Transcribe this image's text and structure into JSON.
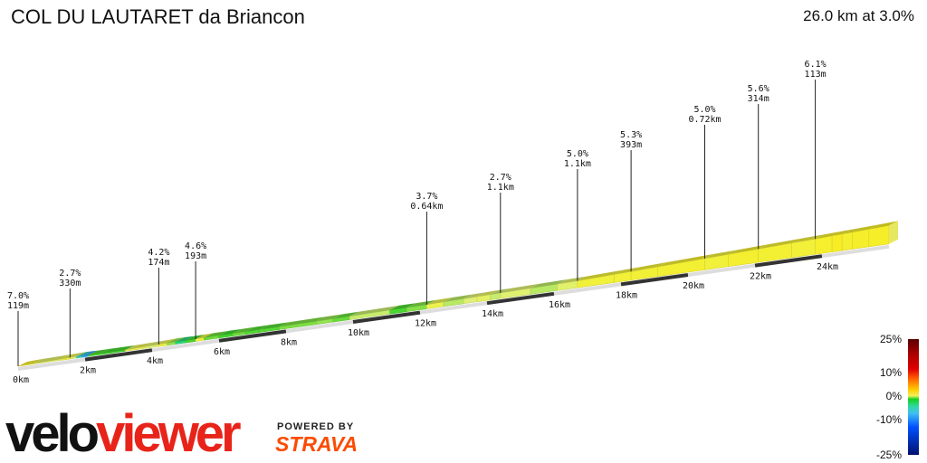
{
  "header": {
    "title": "COL DU LAUTARET da Briancon",
    "summary": "26.0 km at 3.0%"
  },
  "chart_data": {
    "type": "area",
    "title": "COL DU LAUTARET da Briancon",
    "distance_km": 26.0,
    "average_gradient_pct": 3.0,
    "x_ticks_km": [
      "0km",
      "2km",
      "4km",
      "6km",
      "8km",
      "10km",
      "12km",
      "14km",
      "16km",
      "18km",
      "20km",
      "22km",
      "24km"
    ],
    "climb_profile": [
      {
        "start_km": 0.0,
        "gradient": 7.0
      },
      {
        "start_km": 0.12,
        "gradient": 5.5
      },
      {
        "start_km": 0.45,
        "gradient": 3.0
      },
      {
        "start_km": 1.3,
        "gradient": 4.5
      },
      {
        "start_km": 1.55,
        "gradient": 2.7
      },
      {
        "start_km": 1.75,
        "gradient": -3.0
      },
      {
        "start_km": 1.9,
        "gradient": -6.0
      },
      {
        "start_km": 2.1,
        "gradient": 0.5
      },
      {
        "start_km": 2.45,
        "gradient": 0.3
      },
      {
        "start_km": 3.2,
        "gradient": 3.5
      },
      {
        "start_km": 3.8,
        "gradient": 2.8
      },
      {
        "start_km": 4.2,
        "gradient": 4.2
      },
      {
        "start_km": 4.45,
        "gradient": 1.5
      },
      {
        "start_km": 4.7,
        "gradient": -1.5
      },
      {
        "start_km": 5.0,
        "gradient": 0.3
      },
      {
        "start_km": 5.3,
        "gradient": 4.6
      },
      {
        "start_km": 5.55,
        "gradient": 1.0
      },
      {
        "start_km": 6.0,
        "gradient": 0.2
      },
      {
        "start_km": 6.4,
        "gradient": 1.0
      },
      {
        "start_km": 6.8,
        "gradient": 0.5
      },
      {
        "start_km": 7.2,
        "gradient": 0.6
      },
      {
        "start_km": 7.8,
        "gradient": 1.2
      },
      {
        "start_km": 8.9,
        "gradient": 1.5
      },
      {
        "start_km": 9.4,
        "gradient": 0.9
      },
      {
        "start_km": 9.9,
        "gradient": 2.2
      },
      {
        "start_km": 11.1,
        "gradient": 0.4
      },
      {
        "start_km": 11.6,
        "gradient": 1.3
      },
      {
        "start_km": 12.2,
        "gradient": 3.7
      },
      {
        "start_km": 12.7,
        "gradient": 2.0
      },
      {
        "start_km": 13.3,
        "gradient": 2.6
      },
      {
        "start_km": 13.7,
        "gradient": 3.2
      },
      {
        "start_km": 14.1,
        "gradient": 2.2
      },
      {
        "start_km": 14.4,
        "gradient": 2.7
      },
      {
        "start_km": 15.3,
        "gradient": 2.0
      },
      {
        "start_km": 16.1,
        "gradient": 2.9
      },
      {
        "start_km": 16.7,
        "gradient": 5.0
      },
      {
        "start_km": 17.8,
        "gradient": 5.2
      },
      {
        "start_km": 18.3,
        "gradient": 5.3
      },
      {
        "start_km": 19.1,
        "gradient": 5.6
      },
      {
        "start_km": 20.5,
        "gradient": 5.0
      },
      {
        "start_km": 21.2,
        "gradient": 5.8
      },
      {
        "start_km": 22.1,
        "gradient": 5.6
      },
      {
        "start_km": 23.1,
        "gradient": 5.1
      },
      {
        "start_km": 23.8,
        "gradient": 6.1
      },
      {
        "start_km": 24.3,
        "gradient": 6.7
      },
      {
        "start_km": 24.6,
        "gradient": 5.9
      },
      {
        "start_km": 24.9,
        "gradient": 6.3
      },
      {
        "start_km": 25.4,
        "gradient": 6.5
      }
    ],
    "annotations": [
      {
        "km": 0.0,
        "gradient_label": "7.0%",
        "length_label": "119m"
      },
      {
        "km": 1.55,
        "gradient_label": "2.7%",
        "length_label": "330m"
      },
      {
        "km": 4.2,
        "gradient_label": "4.2%",
        "length_label": "174m"
      },
      {
        "km": 5.3,
        "gradient_label": "4.6%",
        "length_label": "193m"
      },
      {
        "km": 12.2,
        "gradient_label": "3.7%",
        "length_label": "0.64km"
      },
      {
        "km": 14.4,
        "gradient_label": "2.7%",
        "length_label": "1.1km"
      },
      {
        "km": 16.7,
        "gradient_label": "5.0%",
        "length_label": "1.1km"
      },
      {
        "km": 18.3,
        "gradient_label": "5.3%",
        "length_label": "393m"
      },
      {
        "km": 20.5,
        "gradient_label": "5.0%",
        "length_label": "0.72km"
      },
      {
        "km": 22.1,
        "gradient_label": "5.6%",
        "length_label": "314m"
      },
      {
        "km": 23.8,
        "gradient_label": "6.1%",
        "length_label": "113m"
      }
    ],
    "legend": {
      "labels": [
        "25%",
        "10%",
        "0%",
        "-10%",
        "-25%"
      ],
      "range_pct": [
        -25,
        25
      ]
    }
  },
  "branding": {
    "logo_part1": "velo",
    "logo_part2": "viewer",
    "powered_by": "POWERED BY",
    "partner": "STRAVA"
  }
}
